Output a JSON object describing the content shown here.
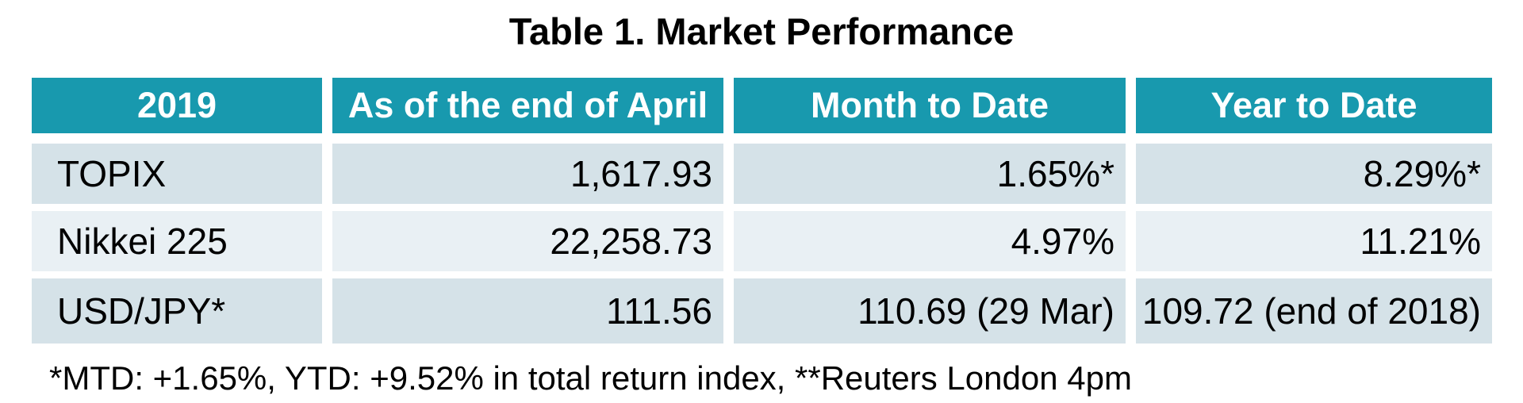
{
  "title": "Table 1. Market Performance",
  "table": {
    "headers": [
      "2019",
      "As of the end of April",
      "Month to Date",
      "Year to Date"
    ],
    "rows": [
      {
        "label": "TOPIX",
        "values": [
          "1,617.93",
          "1.65%*",
          "8.29%*"
        ]
      },
      {
        "label": "Nikkei 225",
        "values": [
          "22,258.73",
          "4.97%",
          "11.21%"
        ]
      },
      {
        "label": "USD/JPY*",
        "values": [
          "111.56",
          "110.69 (29 Mar)",
          "109.72 (end of 2018)"
        ]
      }
    ]
  },
  "footnote": "*MTD: +1.65%, YTD: +9.52% in total return index, **Reuters London 4pm",
  "chart_data": {
    "type": "table",
    "title": "Table 1. Market Performance",
    "columns": [
      "2019",
      "As of the end of April",
      "Month to Date",
      "Year to Date"
    ],
    "rows": [
      [
        "TOPIX",
        "1,617.93",
        "1.65%*",
        "8.29%*"
      ],
      [
        "Nikkei 225",
        "22,258.73",
        "4.97%",
        "11.21%"
      ],
      [
        "USD/JPY*",
        "111.56",
        "110.69 (29 Mar)",
        "109.72 (end of 2018)"
      ]
    ],
    "notes": "*MTD: +1.65%, YTD: +9.52% in total return index, **Reuters London 4pm"
  },
  "colors": {
    "header_bg": "#1899AE",
    "header_text": "#FFFFFF",
    "row_odd_bg": "#D5E2E8",
    "row_even_bg": "#E9F0F4",
    "text": "#000000",
    "background": "#FFFFFF"
  }
}
